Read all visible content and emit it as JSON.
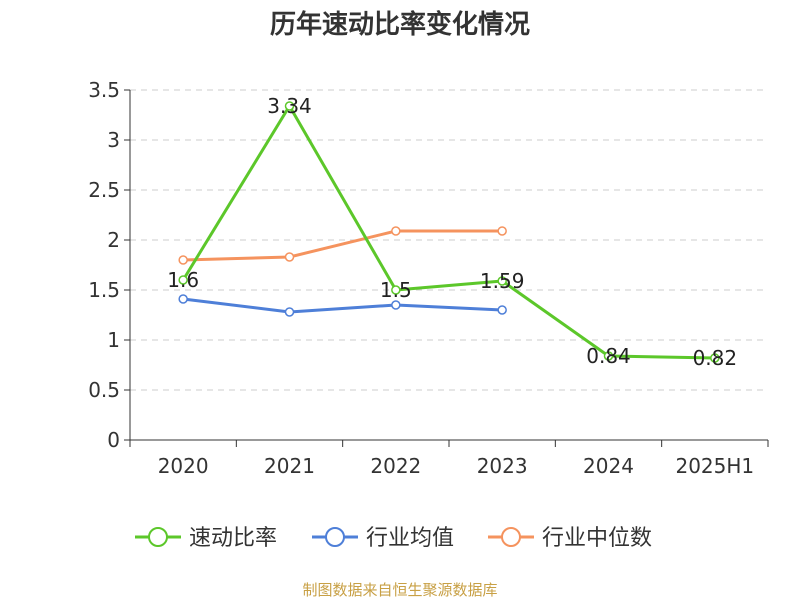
{
  "chart_data": {
    "type": "line",
    "title": "历年速动比率变化情况",
    "categories": [
      "2020",
      "2021",
      "2022",
      "2023",
      "2024",
      "2025H1"
    ],
    "ylim": [
      0,
      3.5
    ],
    "yticks": [
      "0",
      "0.5",
      "1",
      "1.5",
      "2",
      "2.5",
      "3",
      "3.5"
    ],
    "grid": true,
    "legend_position": "bottom",
    "series": [
      {
        "name": "速动比率",
        "color": "#5cc72a",
        "values": [
          1.6,
          3.34,
          1.5,
          1.59,
          0.84,
          0.82
        ],
        "labels": [
          "1.6",
          "3.34",
          "1.5",
          "1.59",
          "0.84",
          "0.82"
        ]
      },
      {
        "name": "行业均值",
        "color": "#4e7fd8",
        "values": [
          1.41,
          1.28,
          1.35,
          1.3,
          null,
          null
        ]
      },
      {
        "name": "行业中位数",
        "color": "#f5935e",
        "values": [
          1.8,
          1.83,
          2.09,
          2.09,
          null,
          null
        ]
      }
    ],
    "source": "制图数据来自恒生聚源数据库",
    "source_color": "#c8a045"
  }
}
